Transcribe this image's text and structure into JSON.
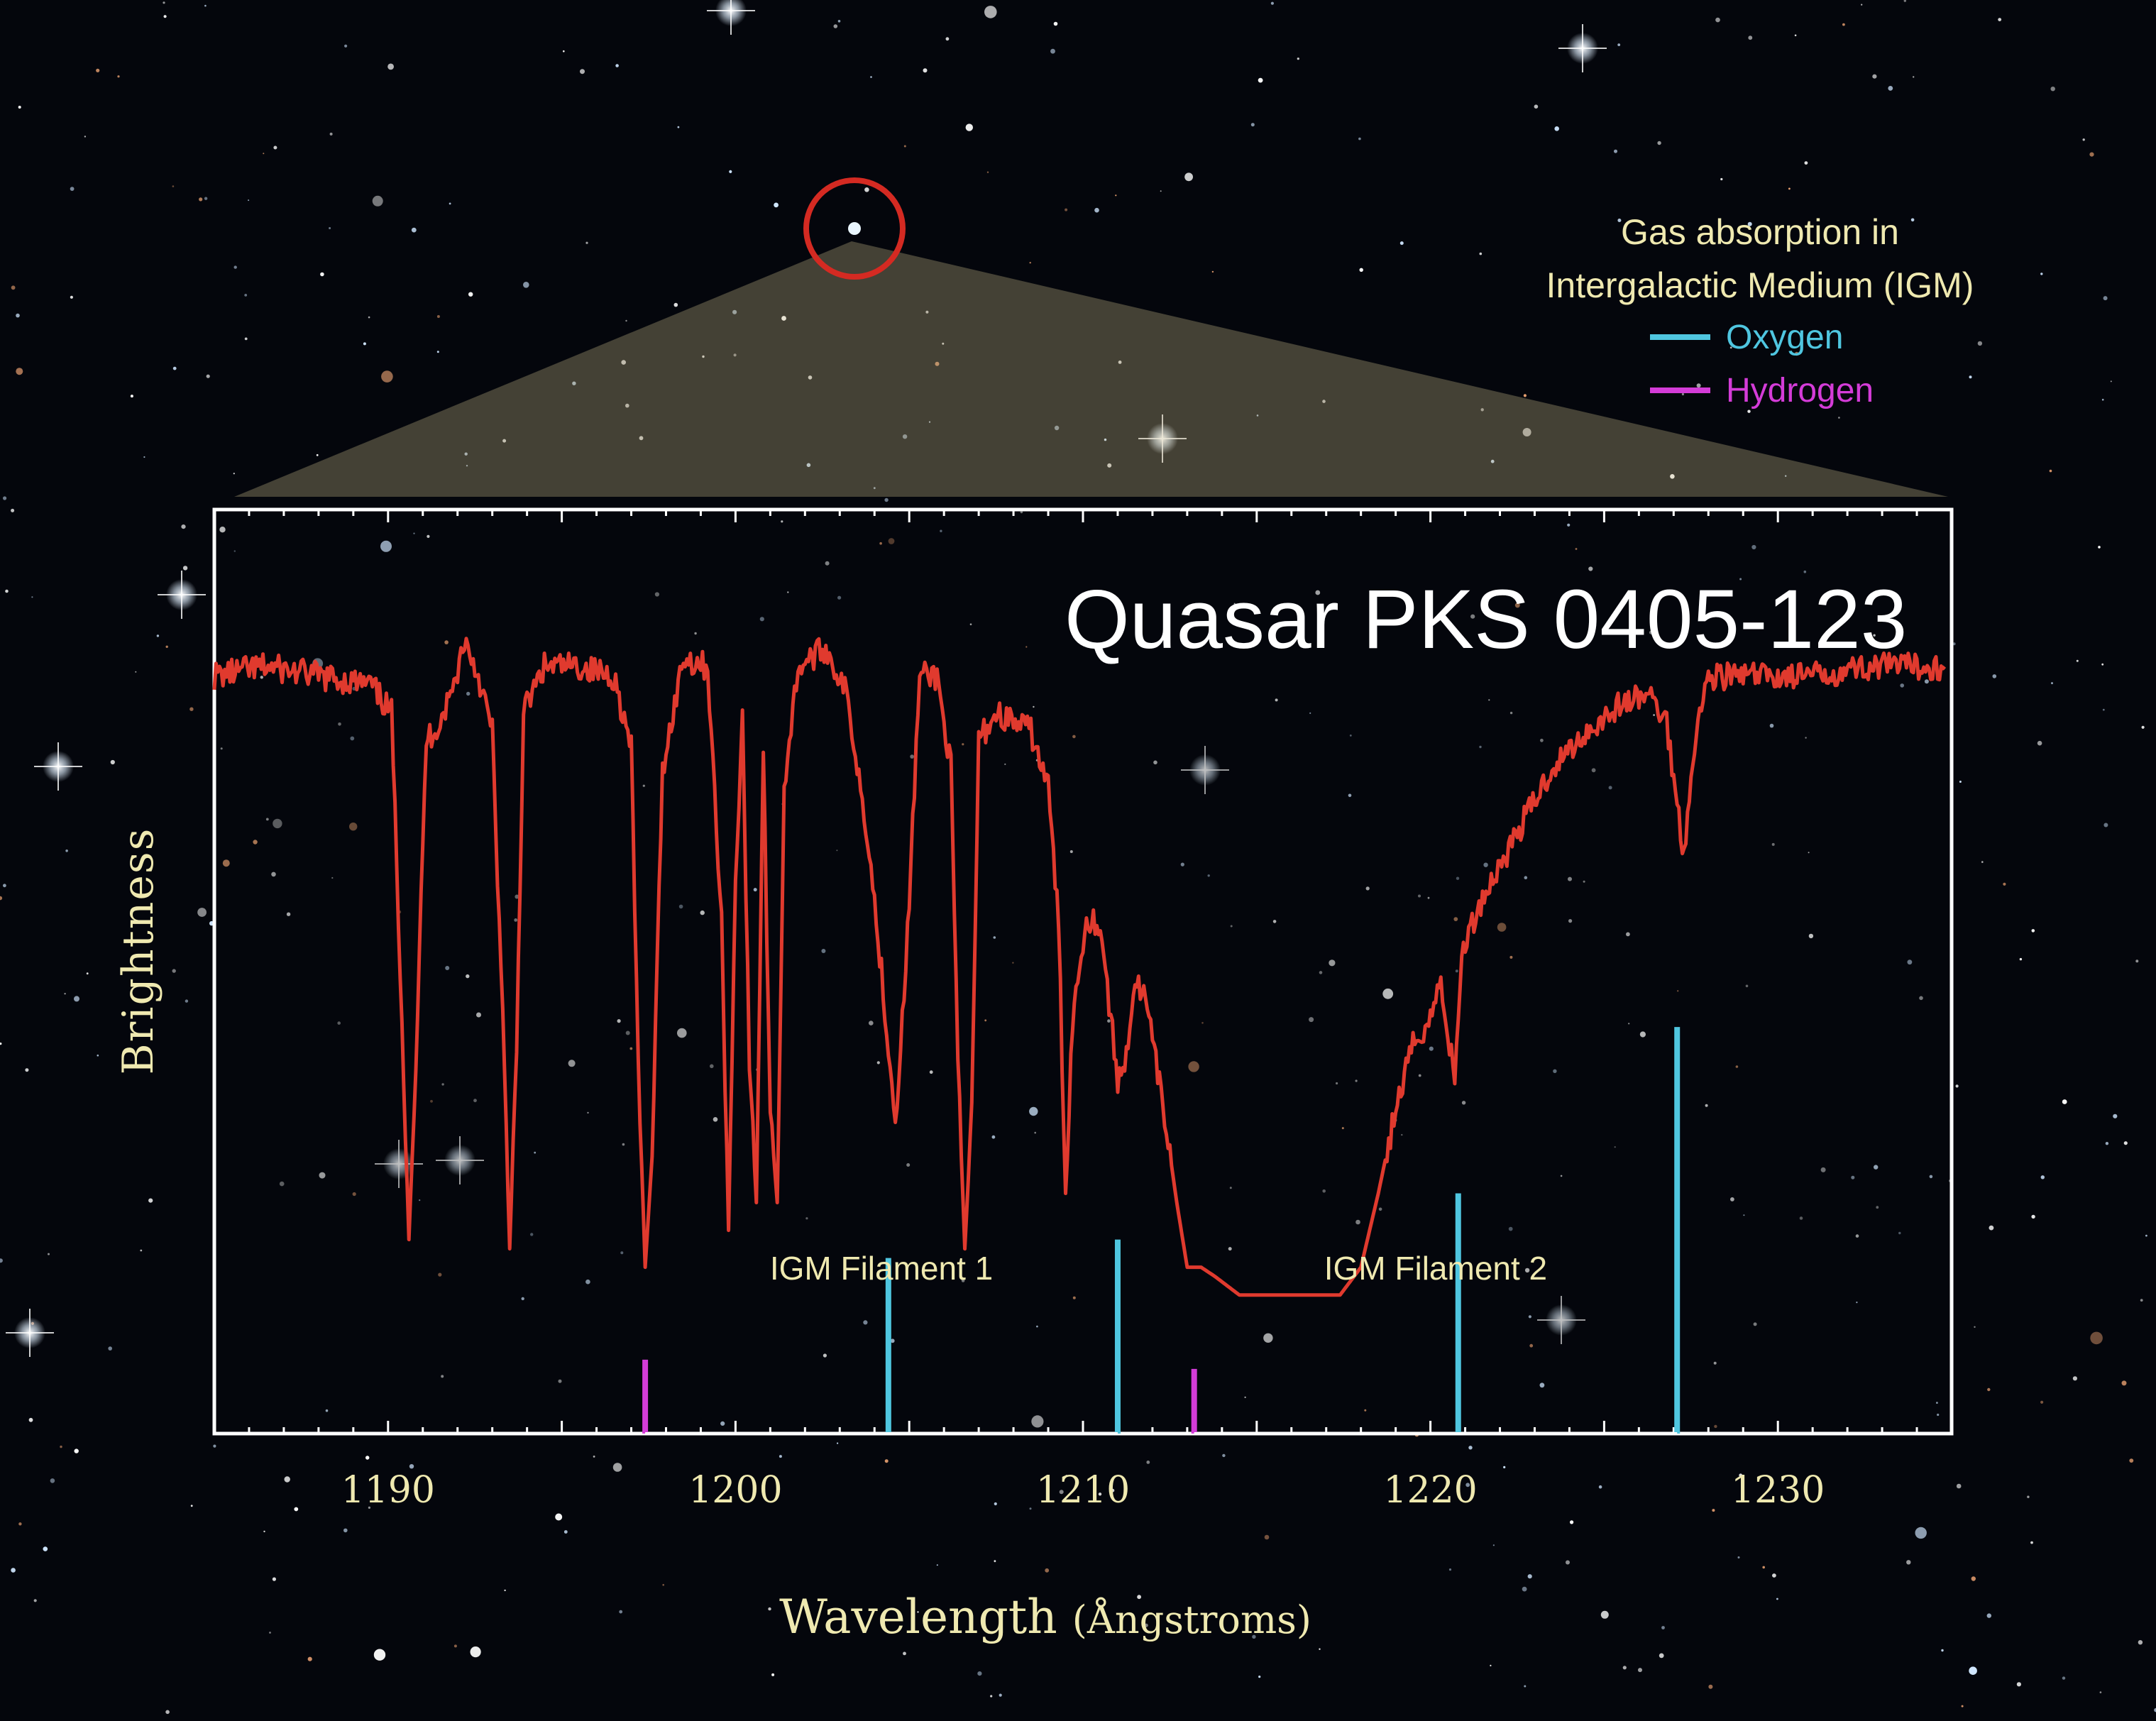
{
  "legend": {
    "title_line1": "Gas absorption in",
    "title_line2": "Intergalactic Medium (IGM)",
    "items": [
      {
        "label": "Oxygen",
        "color": "#4fc6e0"
      },
      {
        "label": "Hydrogen",
        "color": "#d43cd8"
      }
    ]
  },
  "colors": {
    "spectrum": "#e03a2e",
    "frame": "#ffffff",
    "text": "#efe9b0",
    "target_circle": "#d42a22",
    "sky": "#04060c"
  },
  "chart_data": {
    "type": "line",
    "title": "Quasar PKS 0405-123",
    "xlabel_main": "Wavelength",
    "xlabel_unit": "(Ångstroms)",
    "ylabel": "Brightness",
    "xlim": [
      1185,
      1235
    ],
    "xticks": [
      1190,
      1200,
      1210,
      1220,
      1230
    ],
    "series": [
      {
        "points": [
          [
            1185.0,
            0.82
          ],
          [
            1186.5,
            0.83
          ],
          [
            1188.0,
            0.82
          ],
          [
            1189.5,
            0.81
          ],
          [
            1190.1,
            0.78
          ],
          [
            1190.4,
            0.45
          ],
          [
            1190.6,
            0.21
          ],
          [
            1190.8,
            0.4
          ],
          [
            1191.1,
            0.75
          ],
          [
            1191.5,
            0.77
          ],
          [
            1191.9,
            0.81
          ],
          [
            1192.2,
            0.86
          ],
          [
            1192.6,
            0.82
          ],
          [
            1193.0,
            0.76
          ],
          [
            1193.3,
            0.45
          ],
          [
            1193.5,
            0.2
          ],
          [
            1193.7,
            0.42
          ],
          [
            1193.9,
            0.78
          ],
          [
            1194.5,
            0.83
          ],
          [
            1195.5,
            0.83
          ],
          [
            1196.5,
            0.82
          ],
          [
            1197.0,
            0.74
          ],
          [
            1197.2,
            0.4
          ],
          [
            1197.4,
            0.18
          ],
          [
            1197.6,
            0.3
          ],
          [
            1197.9,
            0.72
          ],
          [
            1198.5,
            0.84
          ],
          [
            1199.2,
            0.83
          ],
          [
            1199.6,
            0.55
          ],
          [
            1199.8,
            0.22
          ],
          [
            1200.0,
            0.6
          ],
          [
            1200.2,
            0.78
          ],
          [
            1200.4,
            0.4
          ],
          [
            1200.6,
            0.25
          ],
          [
            1200.8,
            0.74
          ],
          [
            1201.0,
            0.35
          ],
          [
            1201.2,
            0.25
          ],
          [
            1201.4,
            0.7
          ],
          [
            1201.8,
            0.83
          ],
          [
            1202.6,
            0.85
          ],
          [
            1203.2,
            0.8
          ],
          [
            1203.8,
            0.65
          ],
          [
            1204.2,
            0.5
          ],
          [
            1204.6,
            0.34
          ],
          [
            1204.9,
            0.5
          ],
          [
            1205.3,
            0.82
          ],
          [
            1205.8,
            0.82
          ],
          [
            1206.2,
            0.72
          ],
          [
            1206.4,
            0.4
          ],
          [
            1206.6,
            0.2
          ],
          [
            1206.8,
            0.35
          ],
          [
            1207.0,
            0.75
          ],
          [
            1207.5,
            0.78
          ],
          [
            1208.5,
            0.76
          ],
          [
            1209.0,
            0.7
          ],
          [
            1209.3,
            0.55
          ],
          [
            1209.5,
            0.26
          ],
          [
            1209.7,
            0.45
          ],
          [
            1210.1,
            0.56
          ],
          [
            1210.5,
            0.55
          ],
          [
            1210.8,
            0.45
          ],
          [
            1211.0,
            0.38
          ],
          [
            1211.2,
            0.4
          ],
          [
            1211.5,
            0.49
          ],
          [
            1211.8,
            0.47
          ],
          [
            1212.1,
            0.4
          ],
          [
            1212.4,
            0.33
          ],
          [
            1212.7,
            0.25
          ],
          [
            1213.0,
            0.18
          ],
          [
            1213.4,
            0.18
          ],
          [
            1213.8,
            0.17
          ],
          [
            1214.5,
            0.15
          ],
          [
            1215.5,
            0.15
          ],
          [
            1216.5,
            0.15
          ],
          [
            1217.4,
            0.15
          ],
          [
            1218.0,
            0.18
          ],
          [
            1218.5,
            0.26
          ],
          [
            1219.0,
            0.35
          ],
          [
            1219.5,
            0.42
          ],
          [
            1220.0,
            0.45
          ],
          [
            1220.3,
            0.49
          ],
          [
            1220.7,
            0.38
          ],
          [
            1220.9,
            0.52
          ],
          [
            1221.5,
            0.58
          ],
          [
            1222.5,
            0.65
          ],
          [
            1223.5,
            0.72
          ],
          [
            1224.5,
            0.76
          ],
          [
            1225.5,
            0.79
          ],
          [
            1226.3,
            0.8
          ],
          [
            1226.8,
            0.77
          ],
          [
            1227.1,
            0.68
          ],
          [
            1227.3,
            0.63
          ],
          [
            1227.6,
            0.75
          ],
          [
            1228.0,
            0.82
          ],
          [
            1229.5,
            0.82
          ],
          [
            1231.0,
            0.82
          ],
          [
            1232.5,
            0.83
          ],
          [
            1234.0,
            0.83
          ],
          [
            1234.8,
            0.83
          ]
        ]
      }
    ],
    "absorption_markers": [
      {
        "element": "Hydrogen",
        "x": 1197.4,
        "height": 0.08
      },
      {
        "element": "Oxygen",
        "x": 1204.4,
        "height": 0.19
      },
      {
        "element": "Oxygen",
        "x": 1211.0,
        "height": 0.21
      },
      {
        "element": "Hydrogen",
        "x": 1213.2,
        "height": 0.07
      },
      {
        "element": "Oxygen",
        "x": 1220.8,
        "height": 0.26
      },
      {
        "element": "Oxygen",
        "x": 1227.1,
        "height": 0.44
      }
    ],
    "filaments": [
      {
        "label": "IGM Filament 1",
        "x_start": 1197.4,
        "x_end": 1211.0
      },
      {
        "label": "IGM Filament 2",
        "x_start": 1213.2,
        "x_end": 1227.1
      }
    ]
  }
}
